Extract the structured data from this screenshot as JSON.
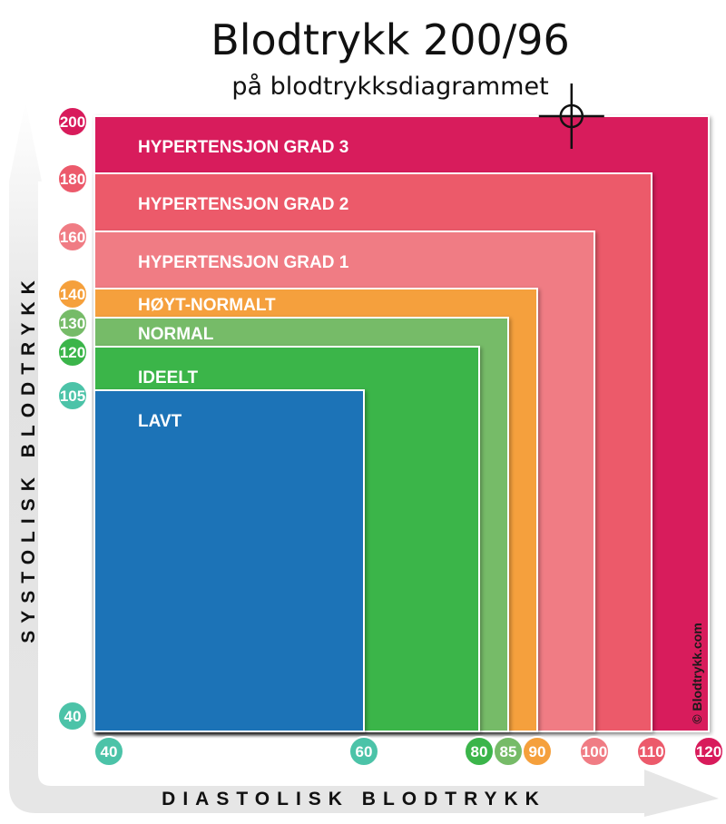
{
  "chart_data": {
    "type": "area",
    "title": "Blodtrykk 200/96",
    "subtitle": "på blodtrykksdiagrammet",
    "xlabel": "DIASTOLISK BLODTRYKK",
    "ylabel": "SYSTOLISK BLODTRYKK",
    "xlim": [
      40,
      120
    ],
    "ylim": [
      40,
      200
    ],
    "zones": [
      {
        "name": "HYPERTENSJON GRAD 3",
        "diastolic_max": 120,
        "systolic_max": 200,
        "color": "#d81b5b"
      },
      {
        "name": "HYPERTENSJON GRAD 2",
        "diastolic_max": 110,
        "systolic_max": 180,
        "color": "#ec5a6b"
      },
      {
        "name": "HYPERTENSJON GRAD 1",
        "diastolic_max": 100,
        "systolic_max": 160,
        "color": "#f07c84"
      },
      {
        "name": "HØYT-NORMALT",
        "diastolic_max": 90,
        "systolic_max": 140,
        "color": "#f5a03c"
      },
      {
        "name": "NORMAL",
        "diastolic_max": 85,
        "systolic_max": 130,
        "color": "#76bb68"
      },
      {
        "name": "IDEELT",
        "diastolic_max": 80,
        "systolic_max": 120,
        "color": "#3bb54a"
      },
      {
        "name": "LAVT",
        "diastolic_max": 60,
        "systolic_max": 105,
        "color": "#1f73b7"
      }
    ],
    "y_ticks": [
      {
        "value": 200,
        "label": "200",
        "color": "#d81b5b"
      },
      {
        "value": 180,
        "label": "180",
        "color": "#ec5a6b"
      },
      {
        "value": 160,
        "label": "160",
        "color": "#f07c84"
      },
      {
        "value": 140,
        "label": "140",
        "color": "#f5a03c"
      },
      {
        "value": 130,
        "label": "130",
        "color": "#76bb68"
      },
      {
        "value": 120,
        "label": "120",
        "color": "#3bb54a"
      },
      {
        "value": 105,
        "label": "105",
        "color": "#4cc3a8"
      },
      {
        "value": 40,
        "label": "40",
        "color": "#4cc3a8"
      }
    ],
    "x_ticks": [
      {
        "value": 40,
        "label": "40",
        "color": "#4cc3a8"
      },
      {
        "value": 60,
        "label": "60",
        "color": "#4cc3a8"
      },
      {
        "value": 80,
        "label": "80",
        "color": "#3bb54a"
      },
      {
        "value": 85,
        "label": "85",
        "color": "#76bb68"
      },
      {
        "value": 90,
        "label": "90",
        "color": "#f5a03c"
      },
      {
        "value": 100,
        "label": "100",
        "color": "#f07c84"
      },
      {
        "value": 110,
        "label": "110",
        "color": "#ec5a6b"
      },
      {
        "value": 120,
        "label": "120",
        "color": "#d81b5b"
      }
    ],
    "marker": {
      "systolic": 200,
      "diastolic": 96
    },
    "watermark": "© Blodtrykk.com"
  }
}
